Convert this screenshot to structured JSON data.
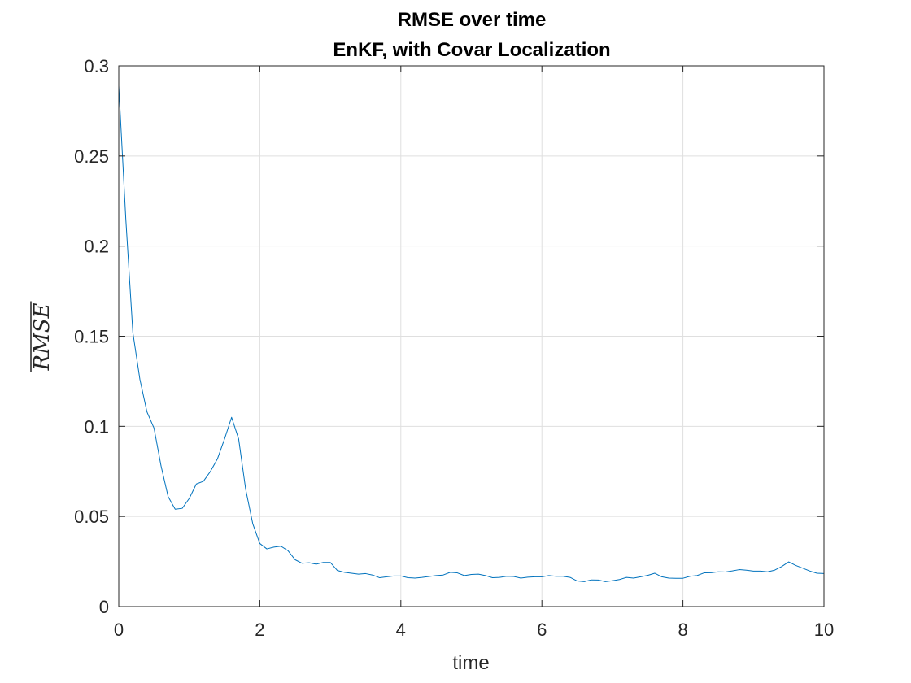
{
  "chart_data": {
    "type": "line",
    "title": [
      "RMSE over time",
      "EnKF, with Covar Localization"
    ],
    "xlabel": "time",
    "ylabel": "RMSE",
    "ylabel_overline": true,
    "xlim": [
      0,
      10
    ],
    "ylim": [
      0,
      0.3
    ],
    "xticks": [
      0,
      2,
      4,
      6,
      8,
      10
    ],
    "xtick_labels": [
      "0",
      "2",
      "4",
      "6",
      "8",
      "10"
    ],
    "yticks": [
      0,
      0.05,
      0.1,
      0.15,
      0.2,
      0.25,
      0.3
    ],
    "ytick_labels": [
      "0",
      "0.05",
      "0.1",
      "0.15",
      "0.2",
      "0.25",
      "0.3"
    ],
    "grid": true,
    "legend": "none",
    "series": [
      {
        "color": "#0072bd",
        "x": [
          0.0,
          0.1,
          0.2,
          0.3,
          0.4,
          0.5,
          0.6,
          0.7,
          0.8,
          0.9,
          1.0,
          1.1,
          1.2,
          1.3,
          1.4,
          1.5,
          1.6,
          1.7,
          1.8,
          1.9,
          2.0,
          2.1,
          2.2,
          2.3,
          2.4,
          2.5,
          2.6,
          2.7,
          2.8,
          2.9,
          3.0,
          3.1,
          3.2,
          3.3,
          3.4,
          3.5,
          3.6,
          3.7,
          3.8,
          3.9,
          4.0,
          4.1,
          4.2,
          4.3,
          4.4,
          4.5,
          4.6,
          4.7,
          4.8,
          4.9,
          5.0,
          5.1,
          5.2,
          5.3,
          5.4,
          5.5,
          5.6,
          5.7,
          5.8,
          5.9,
          6.0,
          6.1,
          6.2,
          6.3,
          6.4,
          6.5,
          6.6,
          6.7,
          6.8,
          6.9,
          7.0,
          7.1,
          7.2,
          7.3,
          7.4,
          7.5,
          7.6,
          7.7,
          7.8,
          7.9,
          8.0,
          8.1,
          8.2,
          8.3,
          8.4,
          8.5,
          8.6,
          8.7,
          8.8,
          8.9,
          9.0,
          9.1,
          9.2,
          9.3,
          9.4,
          9.5,
          9.6,
          9.7,
          9.8,
          9.9,
          10.0
        ],
        "y": [
          0.289,
          0.215,
          0.152,
          0.126,
          0.108,
          0.099,
          0.078,
          0.061,
          0.054,
          0.0545,
          0.06,
          0.068,
          0.0695,
          0.075,
          0.082,
          0.093,
          0.105,
          0.093,
          0.065,
          0.046,
          0.035,
          0.032,
          0.033,
          0.0335,
          0.031,
          0.026,
          0.024,
          0.0243,
          0.0235,
          0.0245,
          0.0245,
          0.02,
          0.019,
          0.0185,
          0.018,
          0.0183,
          0.0175,
          0.016,
          0.0165,
          0.017,
          0.017,
          0.016,
          0.0158,
          0.0162,
          0.0167,
          0.0172,
          0.0175,
          0.019,
          0.0187,
          0.0172,
          0.0178,
          0.018,
          0.0172,
          0.016,
          0.0162,
          0.0168,
          0.0167,
          0.0158,
          0.0163,
          0.0165,
          0.0165,
          0.0172,
          0.0168,
          0.0168,
          0.0162,
          0.0142,
          0.0138,
          0.0148,
          0.0147,
          0.0138,
          0.0143,
          0.015,
          0.0162,
          0.0158,
          0.0165,
          0.0173,
          0.0185,
          0.0165,
          0.0158,
          0.0157,
          0.0157,
          0.0168,
          0.0172,
          0.0187,
          0.0188,
          0.0193,
          0.0192,
          0.0198,
          0.0205,
          0.0202,
          0.0197,
          0.0197,
          0.0193,
          0.0202,
          0.0222,
          0.0248,
          0.0228,
          0.0213,
          0.0197,
          0.0185,
          0.0183
        ]
      }
    ]
  }
}
